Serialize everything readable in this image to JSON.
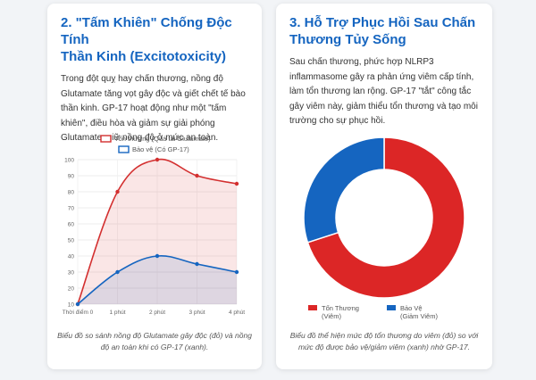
{
  "cards": [
    {
      "title": "2. \"Tấm Khiên\" Chống Độc Tính Thần Kinh (Excitotoxicity)",
      "title_lines": [
        "2. \"Tấm Khiên\" Chống Độc Tính",
        "Thần Kinh (Excitotoxicity)"
      ],
      "description": "Trong đột quỵ hay chấn thương, nồng độ Glutamate tăng vọt gây độc và giết chết tế bào thần kinh. GP-17 hoạt động như một \"tấm khiên\", điều hòa và giảm sự giải phóng Glutamate, giữ nồng độ ở mức an toàn.",
      "caption": "Biểu đồ so sánh nồng độ Glutamate gây độc (đỏ) và nồng độ an toàn khi có GP-17 (xanh)."
    },
    {
      "title": "3. Hỗ Trợ Phục Hồi Sau Chấn Thương Tủy Sống",
      "title_lines": [
        "3. Hỗ Trợ Phục Hồi Sau Chấn",
        "Thương Tủy Sống"
      ],
      "description": "Sau chấn thương, phức hợp NLRP3 inflammasome gây ra phản ứng viêm cấp tính, làm tổn thương lan rộng. GP-17 \"tắt\" công tắc gây viêm này, giảm thiểu tổn thương và tạo môi trường cho sự phục hồi.",
      "caption": "Biểu đồ thể hiện mức độ tổn thương do viêm (đỏ) so với mức độ được bảo vệ/giảm viêm (xanh) nhờ GP-17."
    }
  ],
  "chart_data": [
    {
      "type": "line",
      "x": [
        "Thời điểm 0",
        "1 phút",
        "2 phút",
        "3 phút",
        "4 phút"
      ],
      "series": [
        {
          "name": "Tổn thương (Quá tải Glutamate)",
          "values": [
            10,
            80,
            100,
            90,
            85
          ],
          "color": "#d32f2f"
        },
        {
          "name": "Bảo vệ (Có GP-17)",
          "values": [
            10,
            30,
            40,
            35,
            30
          ],
          "color": "#1565c0"
        }
      ],
      "ylim": [
        10,
        100
      ],
      "yticks": [
        "10",
        "20",
        "30",
        "40",
        "50",
        "60",
        "70",
        "80",
        "90",
        "100"
      ],
      "legend": "top",
      "grid": true
    },
    {
      "type": "pie",
      "variant": "doughnut",
      "categories": [
        "Tổn Thương",
        "Bảo Vệ"
      ],
      "category_sublabels": [
        "(Viêm)",
        "(Giảm Viêm)"
      ],
      "values": [
        70,
        30
      ],
      "colors": [
        "#dc2626",
        "#1565c0"
      ],
      "legend": "bottom"
    }
  ]
}
